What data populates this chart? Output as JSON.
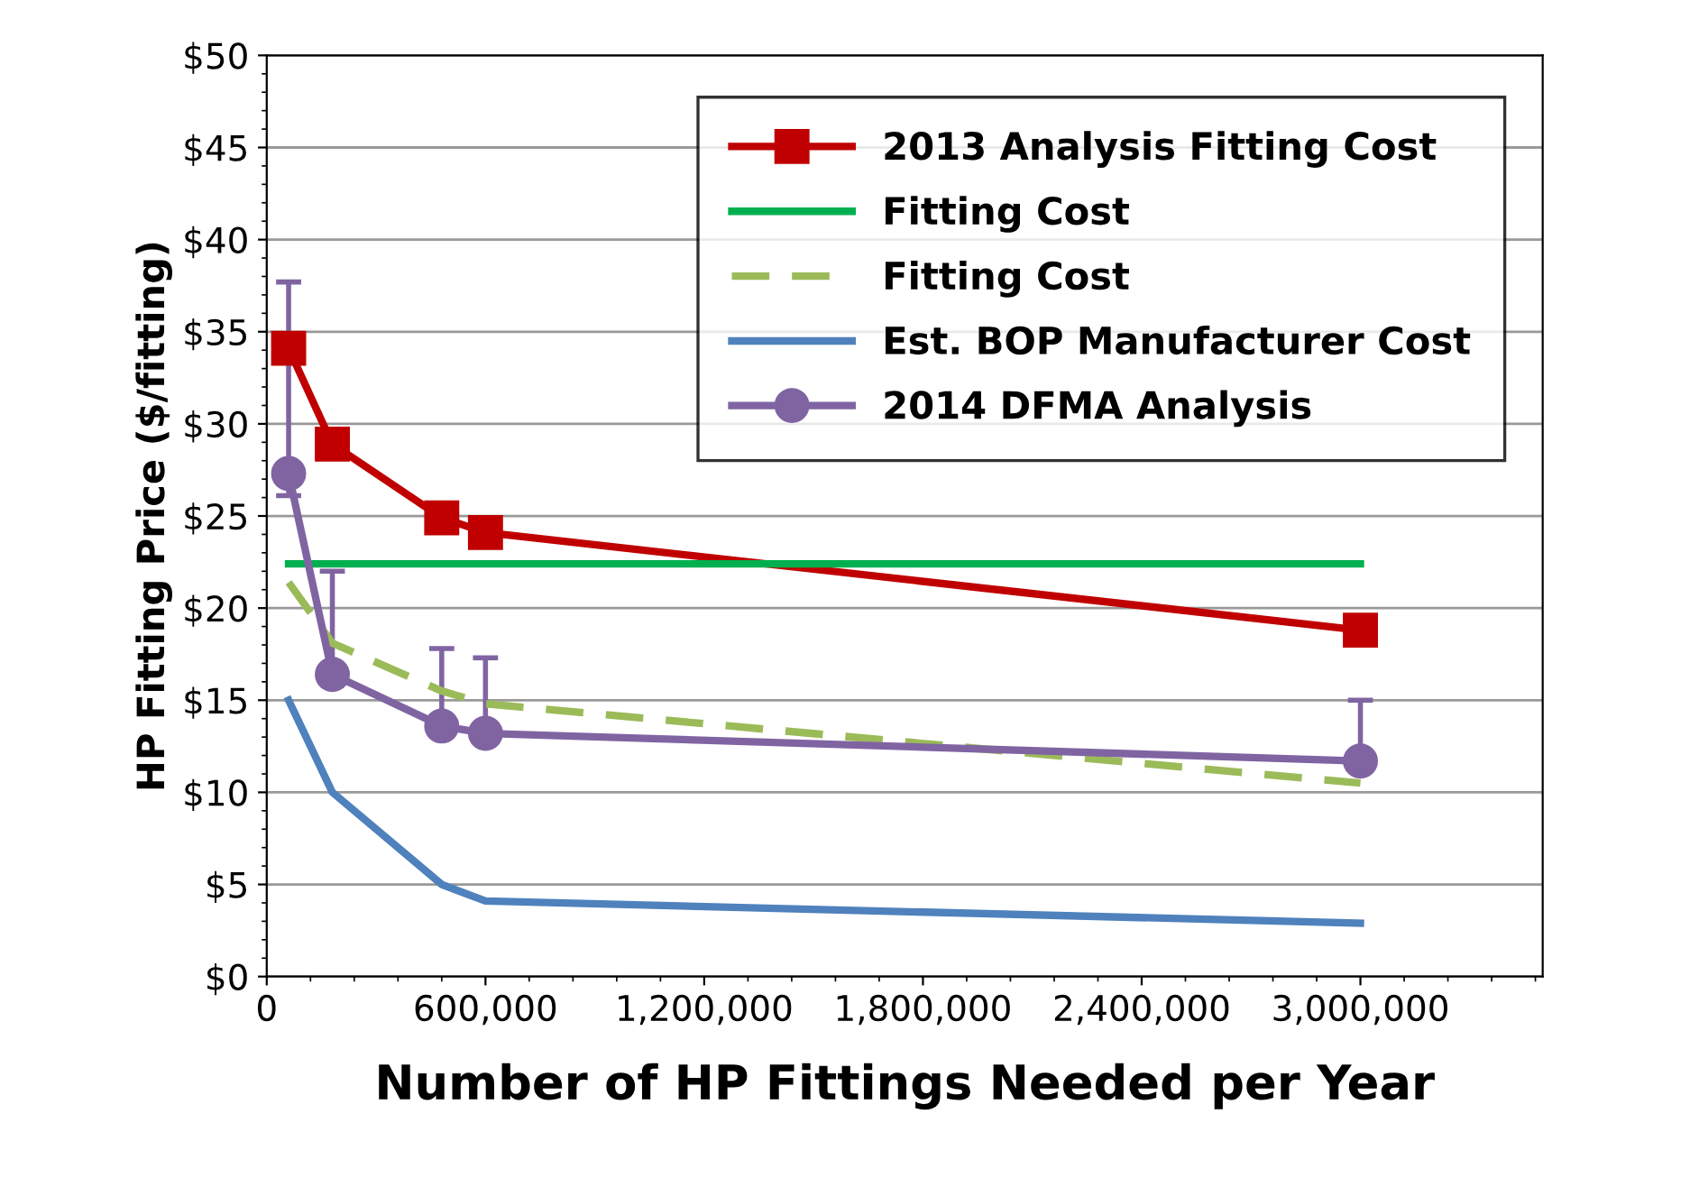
{
  "chart_data": {
    "type": "line",
    "xlabel": "Number of HP Fittings Needed per Year",
    "ylabel": "HP Fitting Price ($/fitting)",
    "xlim": [
      0,
      3500000
    ],
    "xticks": [
      0,
      {
        "value": 600000,
        "label": "600,000"
      },
      {
        "value": 1200000,
        "label": "1,200,000"
      },
      {
        "value": 1800000,
        "label": "1,800,000"
      },
      {
        "value": 2400000,
        "label": "2,400,000"
      },
      {
        "value": 3000000,
        "label": "3,000,000"
      }
    ],
    "ylim": [
      0,
      50
    ],
    "yticks": [
      {
        "value": 0,
        "label": "$0"
      },
      {
        "value": 5,
        "label": "$5"
      },
      {
        "value": 10,
        "label": "$10"
      },
      {
        "value": 15,
        "label": "$15"
      },
      {
        "value": 20,
        "label": "$20"
      },
      {
        "value": 25,
        "label": "$25"
      },
      {
        "value": 30,
        "label": "$30"
      },
      {
        "value": 35,
        "label": "$35"
      },
      {
        "value": 40,
        "label": "$40"
      },
      {
        "value": 45,
        "label": "$45"
      },
      {
        "value": 50,
        "label": "$50"
      }
    ],
    "grid": "y",
    "legend": "top right",
    "series": [
      {
        "name": "2013 Analysis Fitting Cost",
        "color": "#c00000",
        "marker": "square",
        "line_style": "solid",
        "x": [
          60000,
          180000,
          480000,
          600000,
          3000000
        ],
        "values": [
          34.1,
          28.9,
          24.9,
          24.1,
          18.8
        ]
      },
      {
        "name": "Fitting Cost",
        "color": "#00b050",
        "marker": "none",
        "line_style": "solid",
        "x": [
          60000,
          3000000
        ],
        "values": [
          22.4,
          22.4
        ]
      },
      {
        "name": "Fitting Cost",
        "color": "#9bbb59",
        "marker": "none",
        "line_style": "dashed",
        "x": [
          60000,
          180000,
          480000,
          600000,
          3000000
        ],
        "values": [
          21.4,
          18.1,
          15.5,
          14.8,
          10.5
        ]
      },
      {
        "name": "Est. BOP Manufacturer Cost",
        "color": "#4f81bd",
        "marker": "none",
        "line_style": "solid",
        "x": [
          60000,
          180000,
          480000,
          600000,
          3000000
        ],
        "values": [
          15.0,
          10.0,
          5.0,
          4.1,
          2.9
        ]
      },
      {
        "name": "2014 DFMA Analysis",
        "color": "#8064a2",
        "marker": "circle",
        "line_style": "solid",
        "x": [
          60000,
          180000,
          480000,
          600000,
          3000000
        ],
        "values": [
          27.3,
          16.4,
          13.6,
          13.2,
          11.7
        ],
        "errors": [
          [
            26.1,
            37.7
          ],
          [
            16.4,
            22.0
          ],
          [
            13.6,
            17.8
          ],
          [
            13.2,
            17.3
          ],
          [
            11.7,
            15.0
          ]
        ]
      }
    ]
  }
}
